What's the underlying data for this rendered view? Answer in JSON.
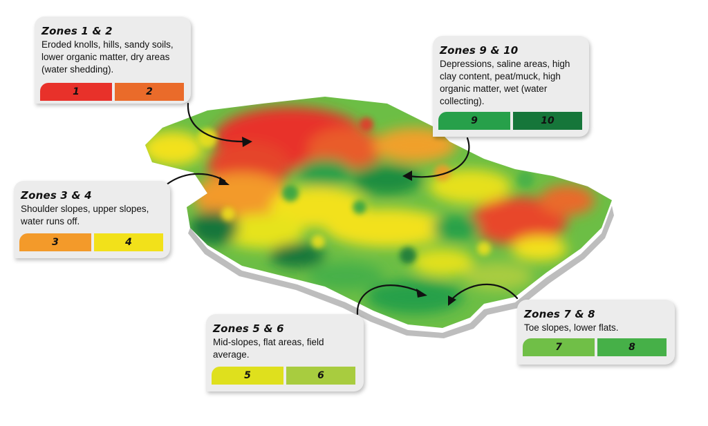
{
  "colors": {
    "zone1": "#e8312a",
    "zone2": "#ea6b2a",
    "zone3": "#f39a2a",
    "zone4": "#f2e11a",
    "zone5": "#dfe01d",
    "zone6": "#a8cc3f",
    "zone7": "#70bf47",
    "zone8": "#46b048",
    "zone9": "#27a04a",
    "zone10": "#16763a"
  },
  "zones_1_2": {
    "title": "Zones 1 & 2",
    "text": "Eroded knolls, hills, sandy soils, lower organic matter, dry areas (water shedding).",
    "swatches": [
      "1",
      "2"
    ]
  },
  "zones_3_4": {
    "title": "Zones 3 & 4",
    "text": "Shoulder slopes, upper slopes, water runs off.",
    "swatches": [
      "3",
      "4"
    ]
  },
  "zones_5_6": {
    "title": "Zones 5 & 6",
    "text": "Mid-slopes, flat areas, field average.",
    "swatches": [
      "5",
      "6"
    ]
  },
  "zones_7_8": {
    "title": "Zones 7 & 8",
    "text": "Toe slopes, lower flats.",
    "swatches": [
      "7",
      "8"
    ]
  },
  "zones_9_10": {
    "title": "Zones 9 & 10",
    "text": "Depressions, saline areas, high clay content, peat/muck, high organic matter, wet (water collecting).",
    "swatches": [
      "9",
      "10"
    ]
  }
}
